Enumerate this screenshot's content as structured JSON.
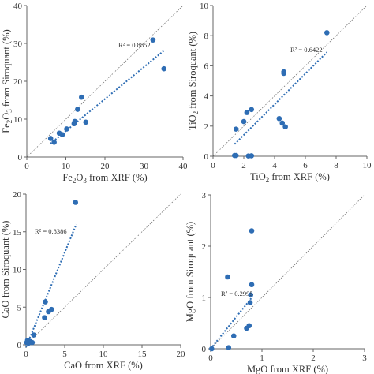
{
  "chart_data": [
    {
      "type": "scatter",
      "id": "fe2o3",
      "xlabel": "Fe2O3 from XRF (%)",
      "ylabel": "Fe2O3 from Siroquant (%)",
      "xlim": [
        0,
        40
      ],
      "ylim": [
        0,
        40
      ],
      "xticks": [
        "0",
        "10",
        "20",
        "30",
        "40"
      ],
      "yticks": [
        "0",
        "10",
        "20",
        "30",
        "40"
      ],
      "r2_label": "R² = 0.8852",
      "points": [
        [
          6.1,
          4.9
        ],
        [
          7.0,
          3.9
        ],
        [
          8.3,
          6.3
        ],
        [
          9.1,
          5.9
        ],
        [
          10.2,
          7.4
        ],
        [
          12.1,
          8.8
        ],
        [
          12.3,
          9.4
        ],
        [
          13.0,
          12.6
        ],
        [
          14.0,
          15.8
        ],
        [
          15.1,
          9.2
        ],
        [
          32.3,
          30.9
        ],
        [
          35.1,
          23.3
        ]
      ],
      "trendline": [
        [
          6.0,
          3.5
        ],
        [
          35.0,
          28.0
        ]
      ],
      "grid": false
    },
    {
      "type": "scatter",
      "id": "tio2",
      "xlabel": "TiO2 from XRF (%)",
      "ylabel": "TiO2 from Siroquant (%)",
      "xlim": [
        0,
        10
      ],
      "ylim": [
        0,
        10
      ],
      "xticks": [
        "0",
        "2",
        "4",
        "6",
        "8",
        "10"
      ],
      "yticks": [
        "0",
        "2",
        "4",
        "6",
        "8",
        "10"
      ],
      "r2_label": "R² = 0.6422",
      "points": [
        [
          1.4,
          0.05
        ],
        [
          1.5,
          1.8
        ],
        [
          1.5,
          0.05
        ],
        [
          2.0,
          2.3
        ],
        [
          2.2,
          2.9
        ],
        [
          2.3,
          0.02
        ],
        [
          2.5,
          0.03
        ],
        [
          2.5,
          3.1
        ],
        [
          4.3,
          2.5
        ],
        [
          4.5,
          2.2
        ],
        [
          4.6,
          5.5
        ],
        [
          4.7,
          1.95
        ],
        [
          4.6,
          5.6
        ],
        [
          7.4,
          8.2
        ]
      ],
      "trendline": [
        [
          1.4,
          0.8
        ],
        [
          7.4,
          6.9
        ]
      ],
      "grid": false
    },
    {
      "type": "scatter",
      "id": "cao",
      "xlabel": "CaO from XRF (%)",
      "ylabel": "CaO from Siroquant (%)",
      "xlim": [
        0,
        20
      ],
      "ylim": [
        0,
        20
      ],
      "xticks": [
        "0",
        "5",
        "10",
        "15",
        "20"
      ],
      "yticks": [
        "0",
        "5",
        "10",
        "15",
        "20"
      ],
      "r2_label": "R² = 0.8386",
      "points": [
        [
          0.1,
          0.3
        ],
        [
          0.2,
          0.6
        ],
        [
          0.3,
          0.2
        ],
        [
          0.4,
          0.5
        ],
        [
          0.6,
          0.4
        ],
        [
          0.8,
          0.3
        ],
        [
          1.0,
          1.3
        ],
        [
          2.4,
          3.6
        ],
        [
          2.5,
          5.7
        ],
        [
          2.9,
          4.4
        ],
        [
          3.3,
          4.7
        ],
        [
          6.4,
          18.9
        ]
      ],
      "trendline": [
        [
          0.0,
          -0.3
        ],
        [
          6.5,
          16.0
        ]
      ],
      "grid": false
    },
    {
      "type": "scatter",
      "id": "mgo",
      "xlabel": "MgO from XRF (%)",
      "ylabel": "MgO from Siroquant (%)",
      "xlim": [
        0,
        3
      ],
      "ylim": [
        0,
        3
      ],
      "xticks": [
        "0",
        "1",
        "2",
        "3"
      ],
      "yticks": [
        "0",
        "1",
        "2",
        "3"
      ],
      "r2_label": "R² = 0.2995",
      "points": [
        [
          0.02,
          0.0
        ],
        [
          0.33,
          1.4
        ],
        [
          0.35,
          0.02
        ],
        [
          0.45,
          0.25
        ],
        [
          0.7,
          0.4
        ],
        [
          0.75,
          0.45
        ],
        [
          0.77,
          0.9
        ],
        [
          0.78,
          1.05
        ],
        [
          0.8,
          1.25
        ],
        [
          0.8,
          2.3
        ]
      ],
      "trendline": [
        [
          0.0,
          0.0
        ],
        [
          0.82,
          1.02
        ]
      ],
      "grid": false
    }
  ],
  "colors": {
    "point": "#2e6db4",
    "trendline": "#2e6db4",
    "reference_line": "#777777",
    "axis": "#666666",
    "text": "#333333"
  }
}
